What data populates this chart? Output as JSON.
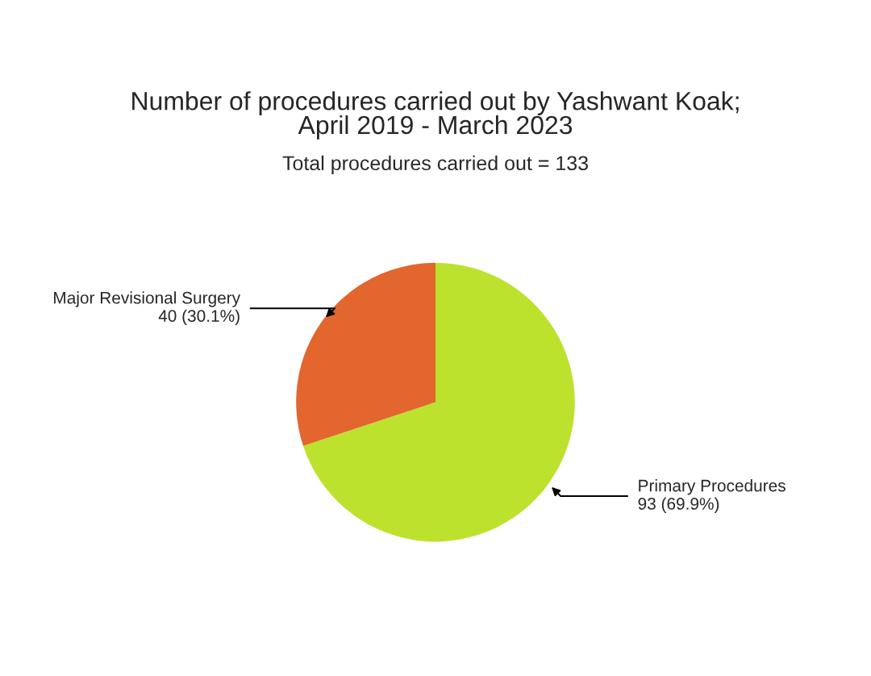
{
  "chart_data": {
    "type": "pie",
    "title": "Number of procedures carried out by Yashwant Koak;\nApril 2019 - March 2023",
    "subtitle": "Total procedures carried out = 133",
    "categories": [
      "Primary Procedures",
      "Major Revisional Surgery"
    ],
    "values": [
      93,
      40
    ],
    "value_labels": [
      "93 (69.9%)",
      "40 (30.1%)"
    ],
    "colors": [
      "#bce22e",
      "#e2662e"
    ],
    "legend": false
  }
}
